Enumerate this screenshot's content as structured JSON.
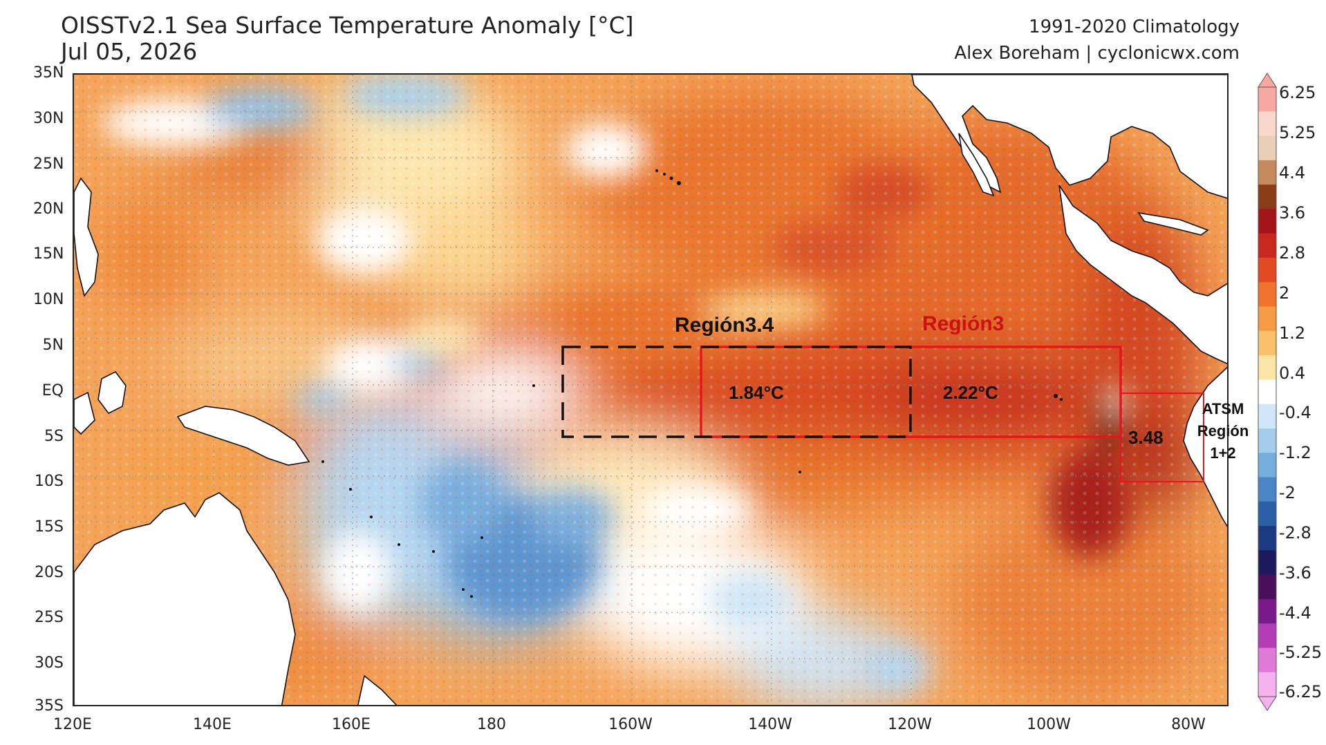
{
  "header": {
    "title": "OISSTv2.1 Sea Surface Temperature Anomaly [°C]",
    "date": "Jul 05, 2026",
    "climatology": "1991-2020 Climatology",
    "credit": "Alex Boreham | cyclonicwx.com"
  },
  "lat_labels": [
    "35N",
    "30N",
    "25N",
    "20N",
    "15N",
    "10N",
    "5N",
    "EQ",
    "5S",
    "10S",
    "15S",
    "20S",
    "25S",
    "30S",
    "35S"
  ],
  "lon_labels": [
    "120E",
    "140E",
    "160E",
    "180",
    "160W",
    "140W",
    "120W",
    "100W",
    "80W"
  ],
  "colorbar": {
    "labels": [
      "6.25",
      "5.25",
      "4.4",
      "3.6",
      "2.8",
      "2",
      "1.2",
      "0.4",
      "-0.4",
      "-1.2",
      "-2",
      "-2.8",
      "-3.6",
      "-4.4",
      "-5.25",
      "-6.25"
    ],
    "colors": [
      "#f7a8a0",
      "#f8d8cc",
      "#e9cfb7",
      "#c48a5c",
      "#8b3d17",
      "#a3141b",
      "#c8281f",
      "#e24a24",
      "#f0722c",
      "#f79c45",
      "#fbc06a",
      "#fbe5a6",
      "#ffffff",
      "#cfe7f8",
      "#a4cdec",
      "#73aedc",
      "#4a86c6",
      "#2c5ea8",
      "#1b3a82",
      "#1c1a5c",
      "#4a0f5a",
      "#7a1a8a",
      "#b43cb4",
      "#e07ad8",
      "#f5b2ef"
    ]
  },
  "annotations": {
    "region34_label": "Región3.4",
    "region34_value": "1.84°C",
    "region3_label": "Región3",
    "region3_value": "2.22°C",
    "region12_value": "3.48",
    "region12_label_line1": "ATSM",
    "region12_label_line2": "Región",
    "region12_label_line3": "1+2"
  },
  "colors": {
    "region3_box": "#e8141b",
    "region34_box": "#111111",
    "region12_box": "#e8141b",
    "region3_text": "#cc1111"
  }
}
